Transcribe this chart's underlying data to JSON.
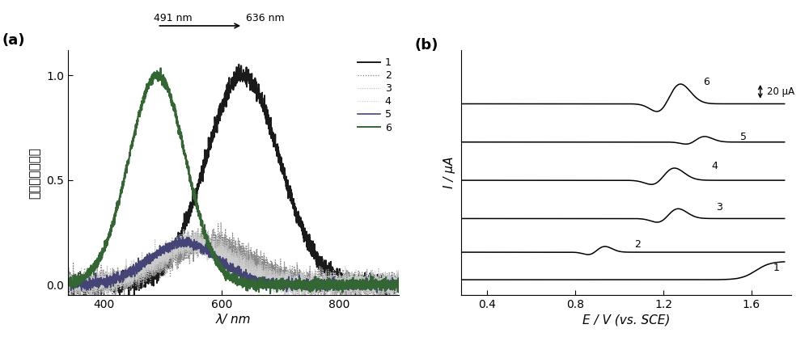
{
  "panel_a": {
    "ylabel": "电化学发光强度",
    "xlabel": "λ/ nm",
    "xlim": [
      340,
      900
    ],
    "ylim": [
      -0.05,
      1.12
    ],
    "yticks": [
      0.0,
      0.5,
      1.0
    ],
    "xticks": [
      400,
      600,
      800
    ],
    "peaks": [
      636,
      580,
      560,
      550,
      536,
      491
    ],
    "widths": [
      62,
      70,
      65,
      62,
      58,
      48
    ],
    "amps": [
      1.0,
      0.2,
      0.2,
      0.2,
      0.2,
      1.0
    ],
    "noises": [
      0.02,
      0.03,
      0.028,
      0.025,
      0.012,
      0.012
    ],
    "colors": [
      "#1a1a1a",
      "#888888",
      "#bbbbbb",
      "#cccccc",
      "#444477",
      "#336633"
    ],
    "lws": [
      1.4,
      0.9,
      0.8,
      0.8,
      1.2,
      1.4
    ],
    "styles": [
      "solid",
      "dotted",
      "dotted",
      "dotted",
      "solid",
      "solid"
    ],
    "legend_labels": [
      "1",
      "2",
      "3",
      "4",
      "5",
      "6"
    ]
  },
  "panel_b": {
    "ylabel": "I / μA",
    "xlabel": "E / V (vs. SCE)",
    "xlim": [
      0.28,
      1.78
    ],
    "ylim": [
      -1.0,
      15.0
    ],
    "xticks": [
      0.4,
      0.8,
      1.2,
      1.6
    ],
    "offsets": [
      0.0,
      1.8,
      4.0,
      6.5,
      9.0,
      11.5
    ],
    "scale_bar": "20 μA",
    "curve_labels": [
      "1",
      "2",
      "3",
      "4",
      "5",
      "6"
    ]
  }
}
